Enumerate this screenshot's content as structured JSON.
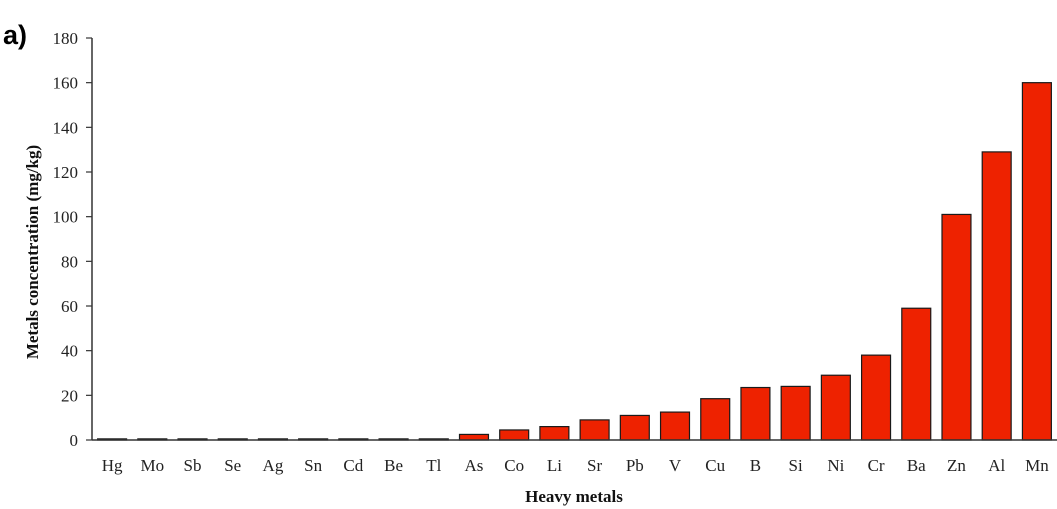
{
  "panel_label": "a)",
  "chart_data": {
    "type": "bar",
    "xlabel": "Heavy metals",
    "ylabel": "Metals concentration (mg/kg)",
    "ylim": [
      0,
      180
    ],
    "yticks": [
      0,
      20,
      40,
      60,
      80,
      100,
      120,
      140,
      160,
      180
    ],
    "grid": false,
    "bar_color": "#ee2200",
    "categories": [
      "Hg",
      "Mo",
      "Sb",
      "Se",
      "Ag",
      "Sn",
      "Cd",
      "Be",
      "Tl",
      "As",
      "Co",
      "Li",
      "Sr",
      "Pb",
      "V",
      "Cu",
      "B",
      "Si",
      "Ni",
      "Cr",
      "Ba",
      "Zn",
      "Al",
      "Mn"
    ],
    "values": [
      0.5,
      0.5,
      0.5,
      0.5,
      0.5,
      0.5,
      0.5,
      0.5,
      0.5,
      2.5,
      4.5,
      6,
      9,
      11,
      12.5,
      18.5,
      23.5,
      24,
      29,
      38,
      59,
      101,
      129,
      160
    ]
  }
}
